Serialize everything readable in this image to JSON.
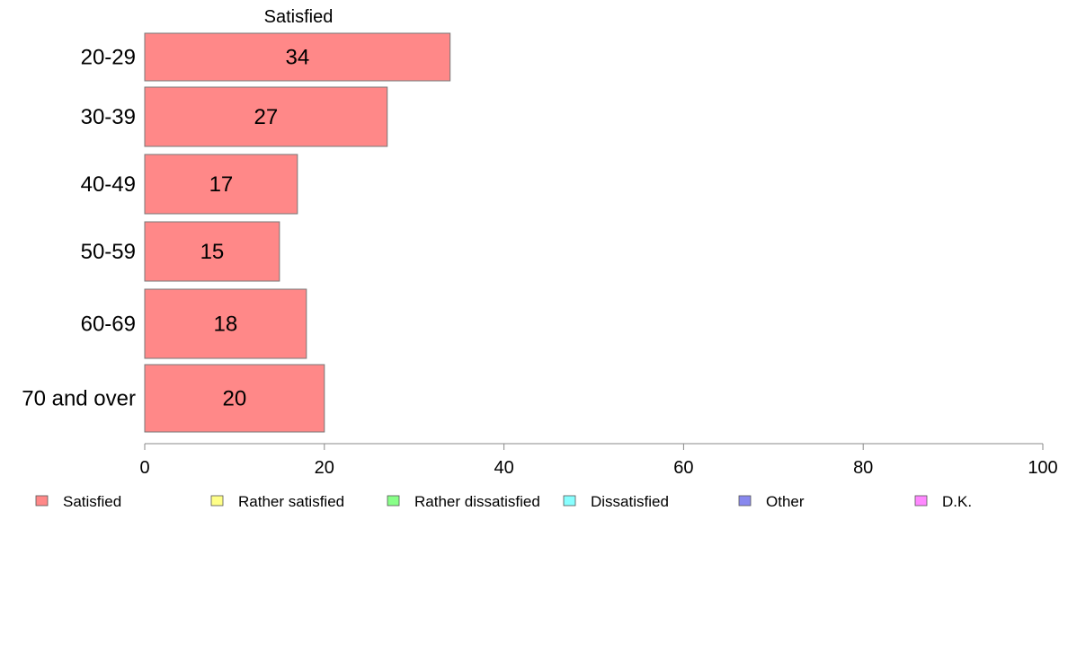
{
  "chart_data": {
    "type": "bar",
    "orientation": "horizontal",
    "series_title": "Satisfied",
    "categories": [
      "20-29",
      "30-39",
      "40-49",
      "50-59",
      "60-69",
      "70 and over"
    ],
    "series": [
      {
        "name": "Satisfied",
        "values": [
          34,
          27,
          17,
          15,
          18,
          20
        ],
        "color": "#ff8888"
      }
    ],
    "xlim": [
      0,
      100
    ],
    "xticks": [
      0,
      20,
      40,
      60,
      80,
      100
    ],
    "grid": false,
    "legend": {
      "placement": "bottom",
      "entries": [
        {
          "label": "Satisfied",
          "color": "#ff8888"
        },
        {
          "label": "Rather satisfied",
          "color": "#ffff88"
        },
        {
          "label": "Rather dissatisfied",
          "color": "#88ff88"
        },
        {
          "label": "Dissatisfied",
          "color": "#88ffff"
        },
        {
          "label": "Other",
          "color": "#8888ee"
        },
        {
          "label": "D.K.",
          "color": "#ff88ff"
        }
      ]
    }
  }
}
